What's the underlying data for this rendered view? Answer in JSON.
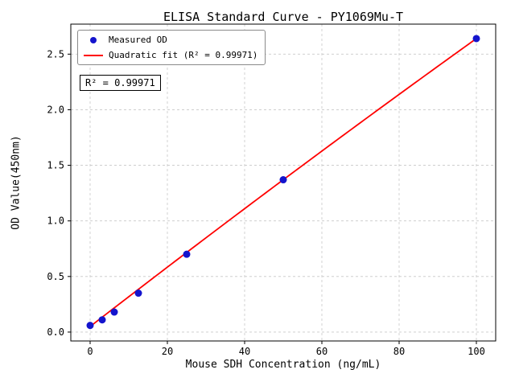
{
  "chart_data": {
    "type": "scatter",
    "title": "ELISA Standard Curve - PY1069Mu-T",
    "xlabel": "Mouse SDH Concentration (ng/mL)",
    "ylabel": "OD Value(450nm)",
    "xlim": [
      -5,
      105
    ],
    "ylim": [
      -0.08,
      2.77
    ],
    "xticks": [
      0,
      20,
      40,
      60,
      80,
      100
    ],
    "yticks": [
      0.0,
      0.5,
      1.0,
      1.5,
      2.0,
      2.5
    ],
    "grid": true,
    "legend_position": "upper left",
    "series": [
      {
        "name": "Measured OD",
        "type": "scatter",
        "color": "#1414cd",
        "x": [
          0,
          3.125,
          6.25,
          12.5,
          25,
          50,
          100
        ],
        "y": [
          0.06,
          0.11,
          0.18,
          0.35,
          0.7,
          1.37,
          2.64
        ]
      },
      {
        "name": "Quadratic fit (R² = 0.99971)",
        "type": "line",
        "color": "#ff0000",
        "fit": {
          "a": 0.05,
          "b": 0.0269,
          "c": -1e-05
        },
        "x_range": [
          0,
          100
        ]
      }
    ],
    "annotation": "R² = 0.99971",
    "r_squared": "0.99971"
  },
  "colors": {
    "scatter": "#1414cd",
    "fit_line": "#ff0000",
    "grid": "#c8c8c8",
    "axis": "#000000",
    "legend_border": "#8a8a8a"
  }
}
